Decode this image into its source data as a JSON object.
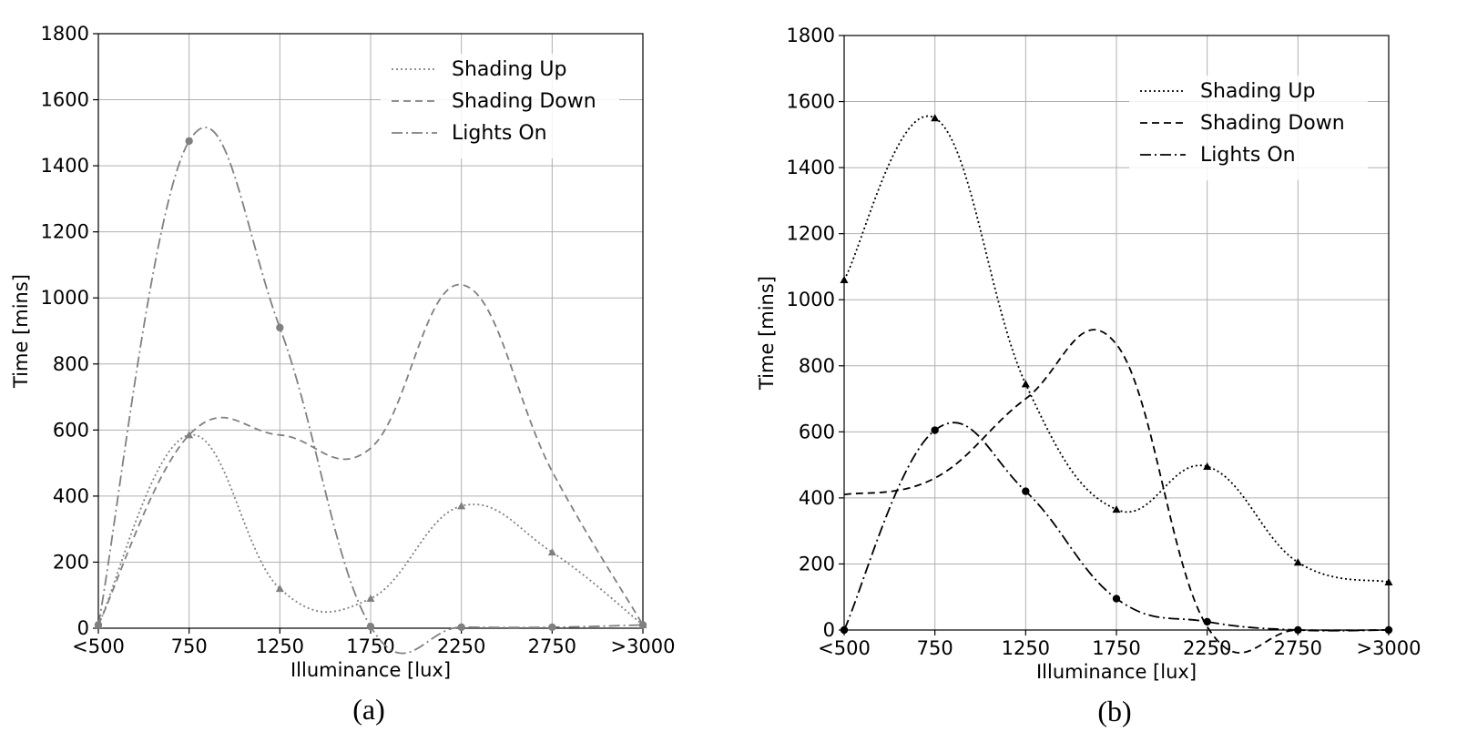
{
  "chart_data": [
    {
      "type": "line",
      "panel_label": "(a)",
      "xlabel": "Illuminance [lux]",
      "ylabel": "Time [mins]",
      "categories": [
        "<500",
        "750",
        "1250",
        "1750",
        "2250",
        "2750",
        ">3000"
      ],
      "ylim": [
        0,
        1800
      ],
      "yticks": [
        0,
        200,
        400,
        600,
        800,
        1000,
        1200,
        1400,
        1600,
        1800
      ],
      "grid": true,
      "legend_position": "top-right",
      "series": [
        {
          "name": "Shading Up",
          "style": "dotted",
          "color": "#808080",
          "marker": "triangle",
          "values": [
            10,
            585,
            120,
            90,
            370,
            230,
            10
          ]
        },
        {
          "name": "Shading Down",
          "style": "dashed",
          "color": "#808080",
          "marker": "none",
          "values": [
            10,
            585,
            585,
            545,
            1040,
            475,
            10
          ]
        },
        {
          "name": "Lights On",
          "style": "dashdot",
          "color": "#808080",
          "marker": "circle",
          "values": [
            10,
            1475,
            910,
            5,
            3,
            3,
            10
          ]
        }
      ]
    },
    {
      "type": "line",
      "panel_label": "(b)",
      "xlabel": "Illuminance [lux]",
      "ylabel": "Time [mins]",
      "categories": [
        "<500",
        "750",
        "1250",
        "1750",
        "2250",
        "2750",
        ">3000"
      ],
      "ylim": [
        0,
        1800
      ],
      "yticks": [
        0,
        200,
        400,
        600,
        800,
        1000,
        1200,
        1400,
        1600,
        1800
      ],
      "grid": true,
      "legend_position": "top-right",
      "series": [
        {
          "name": "Shading Up",
          "style": "dotted",
          "color": "#000000",
          "marker": "triangle",
          "values": [
            1060,
            1550,
            745,
            365,
            495,
            205,
            145
          ]
        },
        {
          "name": "Shading Down",
          "style": "dashed",
          "color": "#000000",
          "marker": "none",
          "values": [
            410,
            460,
            700,
            865,
            10,
            0,
            0
          ]
        },
        {
          "name": "Lights On",
          "style": "dashdot",
          "color": "#000000",
          "marker": "circle",
          "values": [
            0,
            605,
            420,
            95,
            25,
            0,
            0
          ]
        }
      ]
    }
  ]
}
